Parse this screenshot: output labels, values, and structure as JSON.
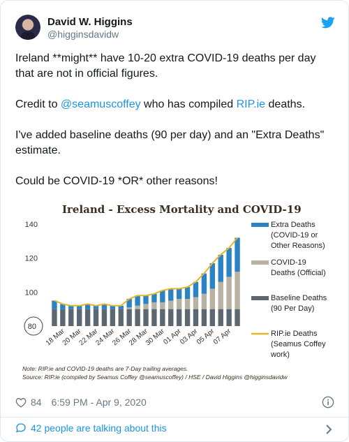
{
  "author": {
    "name": "David W. Higgins",
    "handle": "@higginsdavidw"
  },
  "tweet": {
    "line1": "Ireland **might** have 10-20 extra COVID-19 deaths per day that are not in official figures.",
    "line2_pre": "Credit to ",
    "line2_link1": "@seamuscoffey",
    "line2_mid": " who has compiled ",
    "line2_link2": "RIP.ie",
    "line2_post": " deaths.",
    "line3": "I've added baseline deaths (90 per day) and an \"Extra Deaths\" estimate.",
    "line4": "Could be COVID-19 *OR* other reasons!"
  },
  "footer": {
    "likes": "84",
    "timestamp": "6:59 PM - Apr 9, 2020",
    "talking": "42 people are talking about this"
  },
  "colors": {
    "extra": "#2b83c6",
    "official": "#b9b1a2",
    "baseline": "#5c6772",
    "line": "#e6b428",
    "title": "#3a2e1e",
    "link": "#1b95e0"
  },
  "chart_data": {
    "type": "bar",
    "title": "Ireland - Excess Mortality and COVID-19",
    "ylim": [
      80,
      140
    ],
    "yticks": [
      140,
      120,
      100,
      80
    ],
    "x_tick_labels": [
      "18 Mar",
      "20 Mar",
      "22 Mar",
      "24 Mar",
      "26 Mar",
      "28 Mar",
      "30 Mar",
      "01 Apr",
      "03 Apr",
      "05 Apr",
      "07 Apr"
    ],
    "categories": [
      "17 Mar",
      "18 Mar",
      "19 Mar",
      "20 Mar",
      "21 Mar",
      "22 Mar",
      "23 Mar",
      "24 Mar",
      "25 Mar",
      "26 Mar",
      "27 Mar",
      "28 Mar",
      "29 Mar",
      "30 Mar",
      "31 Mar",
      "01 Apr",
      "02 Apr",
      "03 Apr",
      "04 Apr",
      "05 Apr",
      "06 Apr",
      "07 Apr",
      "08 Apr"
    ],
    "series": [
      {
        "name": "Baseline Deaths (90 Per Day)",
        "values": [
          90,
          90,
          90,
          90,
          90,
          90,
          90,
          90,
          90,
          90,
          90,
          90,
          90,
          90,
          90,
          90,
          90,
          90,
          90,
          90,
          90,
          90,
          90
        ]
      },
      {
        "name": "COVID-19 Deaths (Official)",
        "values": [
          0,
          0,
          0,
          0,
          0,
          0,
          0,
          0,
          0,
          1,
          2,
          3,
          4,
          4,
          5,
          6,
          6,
          7,
          9,
          12,
          16,
          19,
          22
        ]
      },
      {
        "name": "Extra Deaths (COVID-19 or Other Reasons)",
        "values": [
          5,
          3,
          2,
          2,
          3,
          2,
          3,
          2,
          2,
          5,
          6,
          5,
          5,
          7,
          7,
          6,
          7,
          9,
          12,
          15,
          16,
          17,
          20
        ]
      }
    ],
    "line_series": {
      "name": "RIP.ie Deaths (Seamus Coffey work)",
      "values": [
        95,
        93,
        92,
        92,
        93,
        92,
        93,
        92,
        92,
        96,
        98,
        98,
        99,
        101,
        102,
        102,
        103,
        106,
        111,
        117,
        122,
        126,
        132
      ]
    },
    "legend": [
      "Extra Deaths (COVID-19 or Other Reasons)",
      "COVID-19 Deaths (Official)",
      "Baseline Deaths (90 Per Day)",
      "RIP.ie Deaths (Seamus Coffey work)"
    ],
    "notes": [
      "Note: RIP.ie and COVID-19 deaths are 7-Day trailing averages.",
      "Source: RIP.ie (compiled by Seamus Coffey @seamuscoffey) / HSE / David Higgins @higginsdavidw"
    ]
  }
}
